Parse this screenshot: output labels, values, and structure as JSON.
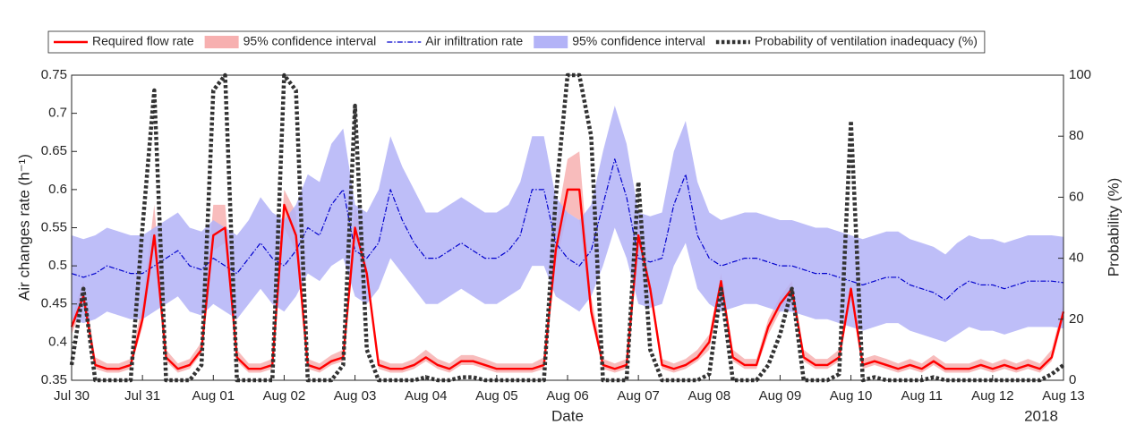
{
  "chart_data": {
    "type": "line",
    "xlabel": "Date",
    "ylabel": "Air changes rate (h⁻¹)",
    "y2label": "Probability (%)",
    "annotation": "2018",
    "x": [
      0,
      4,
      8,
      12,
      16,
      20,
      24,
      28,
      32,
      36,
      40,
      44,
      48,
      52,
      56,
      60,
      64,
      68,
      72,
      76,
      80,
      84,
      88,
      92,
      96,
      100,
      104,
      108,
      112,
      116,
      120,
      124,
      128,
      132,
      136,
      140,
      144,
      148,
      152,
      156,
      160,
      164,
      168,
      172,
      176,
      180,
      184,
      188,
      192,
      196,
      200,
      204,
      208,
      212,
      216,
      220,
      224,
      228,
      232,
      236,
      240,
      244,
      248,
      252,
      256,
      260,
      264,
      268,
      272,
      276,
      280,
      284,
      288,
      292,
      296,
      300,
      304,
      308,
      312,
      316,
      320,
      324,
      328,
      332,
      336
    ],
    "xlim": [
      0,
      336
    ],
    "xticks": [
      {
        "value": 0,
        "label": "Jul 30"
      },
      {
        "value": 24,
        "label": "Jul 31"
      },
      {
        "value": 48,
        "label": "Aug 01"
      },
      {
        "value": 72,
        "label": "Aug 02"
      },
      {
        "value": 96,
        "label": "Aug 03"
      },
      {
        "value": 120,
        "label": "Aug 04"
      },
      {
        "value": 144,
        "label": "Aug 05"
      },
      {
        "value": 168,
        "label": "Aug 06"
      },
      {
        "value": 192,
        "label": "Aug 07"
      },
      {
        "value": 216,
        "label": "Aug 08"
      },
      {
        "value": 240,
        "label": "Aug 09"
      },
      {
        "value": 264,
        "label": "Aug 10"
      },
      {
        "value": 288,
        "label": "Aug 11"
      },
      {
        "value": 312,
        "label": "Aug 12"
      },
      {
        "value": 336,
        "label": "Aug 13"
      }
    ],
    "ylim": [
      0.35,
      0.75
    ],
    "yticks": [
      0.35,
      0.4,
      0.45,
      0.5,
      0.55,
      0.6,
      0.65,
      0.7,
      0.75
    ],
    "y2lim": [
      0,
      100
    ],
    "y2ticks": [
      0,
      20,
      40,
      60,
      80,
      100
    ],
    "series": [
      {
        "name": "Required flow rate",
        "type": "line",
        "color": "#ff0000",
        "values": [
          0.42,
          0.46,
          0.37,
          0.365,
          0.365,
          0.37,
          0.43,
          0.54,
          0.38,
          0.365,
          0.37,
          0.39,
          0.54,
          0.55,
          0.38,
          0.365,
          0.365,
          0.37,
          0.58,
          0.54,
          0.37,
          0.365,
          0.375,
          0.38,
          0.55,
          0.49,
          0.37,
          0.365,
          0.365,
          0.37,
          0.38,
          0.37,
          0.365,
          0.375,
          0.375,
          0.37,
          0.365,
          0.365,
          0.365,
          0.365,
          0.37,
          0.52,
          0.6,
          0.6,
          0.44,
          0.37,
          0.365,
          0.37,
          0.54,
          0.47,
          0.37,
          0.365,
          0.37,
          0.38,
          0.4,
          0.48,
          0.38,
          0.37,
          0.37,
          0.42,
          0.45,
          0.47,
          0.38,
          0.37,
          0.37,
          0.38,
          0.47,
          0.37,
          0.375,
          0.37,
          0.365,
          0.37,
          0.365,
          0.375,
          0.365,
          0.365,
          0.365,
          0.37,
          0.365,
          0.37,
          0.365,
          0.37,
          0.365,
          0.38,
          0.44
        ]
      },
      {
        "name": "95% confidence interval",
        "type": "band",
        "color": "#f7b0b0",
        "lower": [
          0.41,
          0.45,
          0.365,
          0.36,
          0.36,
          0.365,
          0.42,
          0.52,
          0.375,
          0.36,
          0.365,
          0.385,
          0.52,
          0.53,
          0.375,
          0.36,
          0.36,
          0.365,
          0.55,
          0.52,
          0.365,
          0.36,
          0.37,
          0.375,
          0.53,
          0.48,
          0.365,
          0.36,
          0.36,
          0.365,
          0.375,
          0.365,
          0.36,
          0.37,
          0.37,
          0.365,
          0.36,
          0.36,
          0.36,
          0.36,
          0.365,
          0.5,
          0.57,
          0.56,
          0.43,
          0.365,
          0.36,
          0.365,
          0.52,
          0.46,
          0.365,
          0.36,
          0.365,
          0.375,
          0.39,
          0.47,
          0.375,
          0.365,
          0.365,
          0.41,
          0.44,
          0.46,
          0.375,
          0.365,
          0.365,
          0.375,
          0.46,
          0.365,
          0.37,
          0.365,
          0.36,
          0.365,
          0.36,
          0.37,
          0.36,
          0.36,
          0.36,
          0.365,
          0.36,
          0.365,
          0.36,
          0.365,
          0.36,
          0.375,
          0.43
        ],
        "upper": [
          0.43,
          0.48,
          0.38,
          0.372,
          0.372,
          0.378,
          0.45,
          0.58,
          0.39,
          0.372,
          0.378,
          0.4,
          0.58,
          0.58,
          0.39,
          0.372,
          0.372,
          0.378,
          0.6,
          0.57,
          0.378,
          0.372,
          0.383,
          0.39,
          0.58,
          0.5,
          0.378,
          0.372,
          0.372,
          0.378,
          0.39,
          0.378,
          0.372,
          0.383,
          0.383,
          0.378,
          0.372,
          0.372,
          0.372,
          0.372,
          0.38,
          0.55,
          0.64,
          0.65,
          0.46,
          0.378,
          0.372,
          0.378,
          0.56,
          0.48,
          0.378,
          0.372,
          0.378,
          0.39,
          0.41,
          0.49,
          0.39,
          0.378,
          0.378,
          0.43,
          0.46,
          0.48,
          0.39,
          0.378,
          0.378,
          0.39,
          0.48,
          0.378,
          0.383,
          0.378,
          0.372,
          0.378,
          0.372,
          0.383,
          0.372,
          0.372,
          0.372,
          0.378,
          0.372,
          0.378,
          0.372,
          0.378,
          0.372,
          0.39,
          0.45
        ]
      },
      {
        "name": "Air infiltration rate",
        "type": "line",
        "dash": "dashdot",
        "color": "#0000cc",
        "values": [
          0.49,
          0.485,
          0.49,
          0.5,
          0.495,
          0.49,
          0.49,
          0.5,
          0.51,
          0.52,
          0.5,
          0.495,
          0.51,
          0.5,
          0.49,
          0.51,
          0.53,
          0.51,
          0.5,
          0.52,
          0.55,
          0.54,
          0.58,
          0.6,
          0.52,
          0.51,
          0.53,
          0.6,
          0.56,
          0.53,
          0.51,
          0.51,
          0.52,
          0.53,
          0.52,
          0.51,
          0.51,
          0.52,
          0.54,
          0.6,
          0.6,
          0.53,
          0.51,
          0.5,
          0.52,
          0.58,
          0.64,
          0.59,
          0.51,
          0.505,
          0.51,
          0.58,
          0.62,
          0.54,
          0.51,
          0.5,
          0.505,
          0.51,
          0.51,
          0.505,
          0.5,
          0.5,
          0.495,
          0.49,
          0.49,
          0.485,
          0.48,
          0.475,
          0.48,
          0.485,
          0.485,
          0.475,
          0.47,
          0.465,
          0.455,
          0.47,
          0.48,
          0.475,
          0.475,
          0.47,
          0.475,
          0.48,
          0.48,
          0.48,
          0.478
        ]
      },
      {
        "name": "95% confidence interval",
        "type": "band",
        "color": "#b3b3f7",
        "lower": [
          0.43,
          0.425,
          0.43,
          0.44,
          0.435,
          0.43,
          0.43,
          0.44,
          0.45,
          0.46,
          0.44,
          0.435,
          0.45,
          0.44,
          0.43,
          0.45,
          0.47,
          0.45,
          0.44,
          0.46,
          0.49,
          0.48,
          0.5,
          0.51,
          0.46,
          0.45,
          0.47,
          0.51,
          0.49,
          0.47,
          0.45,
          0.45,
          0.46,
          0.47,
          0.46,
          0.45,
          0.45,
          0.46,
          0.47,
          0.5,
          0.5,
          0.46,
          0.45,
          0.44,
          0.46,
          0.5,
          0.55,
          0.51,
          0.45,
          0.445,
          0.45,
          0.5,
          0.53,
          0.47,
          0.45,
          0.44,
          0.445,
          0.45,
          0.45,
          0.445,
          0.44,
          0.44,
          0.435,
          0.43,
          0.43,
          0.425,
          0.42,
          0.415,
          0.42,
          0.425,
          0.425,
          0.415,
          0.41,
          0.405,
          0.4,
          0.41,
          0.42,
          0.415,
          0.415,
          0.41,
          0.415,
          0.42,
          0.42,
          0.42,
          0.418
        ],
        "upper": [
          0.54,
          0.535,
          0.54,
          0.55,
          0.545,
          0.54,
          0.54,
          0.55,
          0.56,
          0.57,
          0.55,
          0.545,
          0.56,
          0.55,
          0.54,
          0.56,
          0.59,
          0.57,
          0.56,
          0.58,
          0.62,
          0.61,
          0.66,
          0.68,
          0.58,
          0.57,
          0.6,
          0.67,
          0.63,
          0.6,
          0.57,
          0.57,
          0.58,
          0.59,
          0.58,
          0.57,
          0.57,
          0.58,
          0.61,
          0.67,
          0.67,
          0.59,
          0.57,
          0.56,
          0.58,
          0.65,
          0.71,
          0.66,
          0.57,
          0.565,
          0.57,
          0.65,
          0.69,
          0.61,
          0.57,
          0.56,
          0.565,
          0.57,
          0.57,
          0.565,
          0.56,
          0.56,
          0.555,
          0.55,
          0.55,
          0.545,
          0.54,
          0.535,
          0.54,
          0.545,
          0.545,
          0.535,
          0.53,
          0.525,
          0.515,
          0.53,
          0.54,
          0.535,
          0.535,
          0.53,
          0.535,
          0.54,
          0.54,
          0.54,
          0.538
        ]
      },
      {
        "name": "Probability of ventilation inadequacy (%)",
        "type": "line",
        "dash": "dotted",
        "axis": "y2",
        "color": "#333333",
        "values": [
          5,
          30,
          0,
          0,
          0,
          0,
          50,
          95,
          0,
          0,
          0,
          5,
          95,
          100,
          0,
          0,
          0,
          0,
          100,
          95,
          0,
          0,
          0,
          5,
          90,
          10,
          0,
          0,
          0,
          0,
          1,
          0,
          0,
          1,
          1,
          0,
          0,
          0,
          0,
          0,
          0,
          60,
          100,
          100,
          80,
          0,
          0,
          0,
          65,
          10,
          0,
          0,
          0,
          0,
          2,
          30,
          0,
          0,
          0,
          5,
          15,
          30,
          0,
          0,
          0,
          2,
          85,
          0,
          1,
          0,
          0,
          0,
          0,
          1,
          0,
          0,
          0,
          0,
          0,
          0,
          0,
          0,
          0,
          2,
          5
        ]
      }
    ],
    "legend": "top"
  }
}
